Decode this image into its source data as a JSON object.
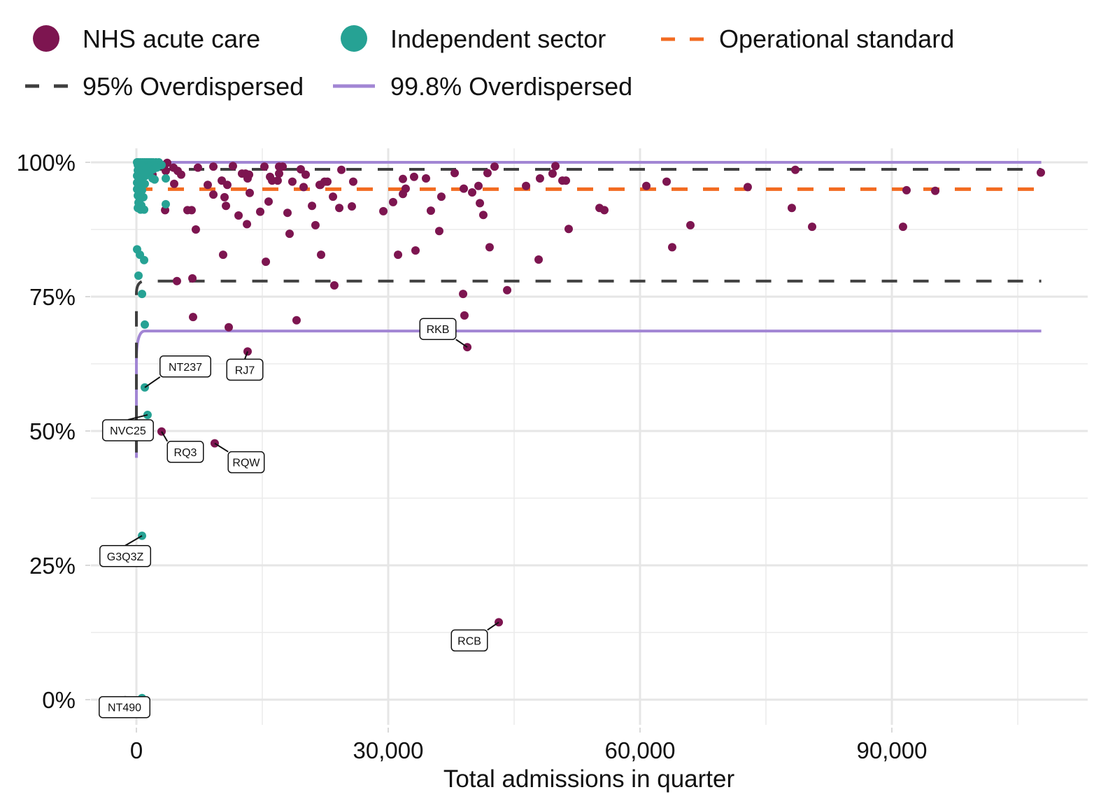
{
  "chart_data": {
    "type": "scatter",
    "title": "",
    "xlabel": "Total admissions in quarter",
    "ylabel": "",
    "xlim": [
      -5400,
      113000
    ],
    "ylim": [
      -0.05,
      1.03
    ],
    "x_ticks": [
      0,
      30000,
      60000,
      90000
    ],
    "x_tick_labels": [
      "0",
      "30,000",
      "60,000",
      "90,000"
    ],
    "y_ticks": [
      0,
      0.25,
      0.5,
      0.75,
      1.0
    ],
    "y_tick_labels": [
      "0%",
      "25%",
      "50%",
      "75%",
      "100%"
    ],
    "grid": true,
    "legend": {
      "position": "top",
      "entries": [
        {
          "label": "NHS acute care",
          "type": "point",
          "color": "#7d1550"
        },
        {
          "label": "Independent sector",
          "type": "point",
          "color": "#26a294"
        },
        {
          "label": "Operational standard",
          "type": "dashed-line",
          "color": "#f26b21"
        },
        {
          "label": "95% Overdispersed",
          "type": "dashed-line",
          "color": "#3f3f3f"
        },
        {
          "label": "99.8% Overdispersed",
          "type": "line",
          "color": "#a286d4"
        }
      ]
    },
    "reference_lines": {
      "operational_standard": 0.95,
      "limit_95_upper": 0.987,
      "limit_95_lower": 0.779,
      "limit_998_upper": 1.0,
      "limit_998_lower": 0.686,
      "x_max": 107800
    },
    "series": [
      {
        "name": "NHS acute care",
        "color": "#7d1550",
        "points": [
          [
            500,
            0.969
          ],
          [
            670,
            0.979
          ],
          [
            1920,
            0.977
          ],
          [
            1250,
            0.992
          ],
          [
            3330,
            0.995
          ],
          [
            3670,
            0.999
          ],
          [
            3500,
            0.984
          ],
          [
            4420,
            0.99
          ],
          [
            4920,
            0.984
          ],
          [
            5330,
            0.977
          ],
          [
            3420,
            0.911
          ],
          [
            4500,
            0.96
          ],
          [
            4830,
            0.779
          ],
          [
            6080,
            0.911
          ],
          [
            6580,
            0.911
          ],
          [
            6670,
            0.784
          ],
          [
            6750,
            0.712
          ],
          [
            7080,
            0.875
          ],
          [
            7330,
            0.99
          ],
          [
            8500,
            0.958
          ],
          [
            9170,
            0.992
          ],
          [
            9170,
            0.94
          ],
          [
            10170,
            0.966
          ],
          [
            10330,
            0.828
          ],
          [
            10500,
            0.935
          ],
          [
            10670,
            0.919
          ],
          [
            10830,
            0.958
          ],
          [
            11000,
            0.693
          ],
          [
            11500,
            0.993
          ],
          [
            12170,
            0.901
          ],
          [
            12580,
            0.979
          ],
          [
            13000,
            0.979
          ],
          [
            13170,
            0.885
          ],
          [
            13250,
            0.97
          ],
          [
            13420,
            0.977
          ],
          [
            13500,
            0.943
          ],
          [
            15420,
            0.815
          ],
          [
            15750,
            0.927
          ],
          [
            14750,
            0.908
          ],
          [
            15250,
            0.992
          ],
          [
            15920,
            0.973
          ],
          [
            16170,
            0.966
          ],
          [
            16830,
            0.966
          ],
          [
            17000,
            0.979
          ],
          [
            17000,
            0.992
          ],
          [
            17420,
            0.992
          ],
          [
            18000,
            0.906
          ],
          [
            18250,
            0.867
          ],
          [
            18580,
            0.964
          ],
          [
            19080,
            0.706
          ],
          [
            19580,
            0.987
          ],
          [
            19920,
            0.954
          ],
          [
            20170,
            0.977
          ],
          [
            20920,
            0.919
          ],
          [
            21330,
            0.883
          ],
          [
            21830,
            0.958
          ],
          [
            21920,
            0.958
          ],
          [
            22000,
            0.828
          ],
          [
            22420,
            0.964
          ],
          [
            22750,
            0.964
          ],
          [
            23420,
            0.936
          ],
          [
            23580,
            0.771
          ],
          [
            24170,
            0.915
          ],
          [
            24420,
            0.986
          ],
          [
            25670,
            0.918
          ],
          [
            25830,
            0.964
          ],
          [
            29420,
            0.909
          ],
          [
            30580,
            0.926
          ],
          [
            31170,
            0.828
          ],
          [
            31750,
            0.969
          ],
          [
            31750,
            0.941
          ],
          [
            32080,
            0.951
          ],
          [
            33080,
            0.973
          ],
          [
            33250,
            0.836
          ],
          [
            34500,
            0.97
          ],
          [
            35080,
            0.91
          ],
          [
            36080,
            0.872
          ],
          [
            36330,
            0.936
          ],
          [
            37920,
            0.98
          ],
          [
            38920,
            0.755
          ],
          [
            39000,
            0.951
          ],
          [
            39080,
            0.715
          ],
          [
            39420,
            0.656
          ],
          [
            40000,
            0.944
          ],
          [
            40920,
            0.924
          ],
          [
            41330,
            0.902
          ],
          [
            41830,
            0.98
          ],
          [
            42080,
            0.842
          ],
          [
            42670,
            0.992
          ],
          [
            40750,
            0.956
          ],
          [
            44170,
            0.762
          ],
          [
            46420,
            0.956
          ],
          [
            47920,
            0.819
          ],
          [
            48080,
            0.97
          ],
          [
            49580,
            0.979
          ],
          [
            49920,
            0.993
          ],
          [
            50750,
            0.966
          ],
          [
            51170,
            0.966
          ],
          [
            51500,
            0.876
          ],
          [
            55170,
            0.915
          ],
          [
            55750,
            0.911
          ],
          [
            60750,
            0.956
          ],
          [
            63170,
            0.964
          ],
          [
            63830,
            0.842
          ],
          [
            66000,
            0.883
          ],
          [
            72830,
            0.954
          ],
          [
            78080,
            0.915
          ],
          [
            78500,
            0.986
          ],
          [
            80500,
            0.88
          ],
          [
            91330,
            0.88
          ],
          [
            91750,
            0.948
          ],
          [
            95170,
            0.947
          ],
          [
            107750,
            0.981
          ],
          [
            43170,
            0.144
          ],
          [
            3000,
            0.499
          ],
          [
            9330,
            0.477
          ],
          [
            13250,
            0.648
          ]
        ]
      },
      {
        "name": "Independent sector",
        "color": "#26a294",
        "points": [
          [
            80,
            1.0
          ],
          [
            250,
            1.0
          ],
          [
            500,
            1.0
          ],
          [
            750,
            1.0
          ],
          [
            1000,
            1.0
          ],
          [
            1250,
            1.0
          ],
          [
            1500,
            1.0
          ],
          [
            1750,
            1.0
          ],
          [
            2000,
            1.0
          ],
          [
            2330,
            1.0
          ],
          [
            2670,
            1.0
          ],
          [
            3000,
            0.995
          ],
          [
            170,
            0.995
          ],
          [
            420,
            0.99
          ],
          [
            830,
            0.992
          ],
          [
            1170,
            0.99
          ],
          [
            1580,
            0.992
          ],
          [
            2000,
            0.987
          ],
          [
            2420,
            0.99
          ],
          [
            170,
            0.985
          ],
          [
            420,
            0.98
          ],
          [
            1000,
            0.98
          ],
          [
            1580,
            0.982
          ],
          [
            80,
            0.975
          ],
          [
            330,
            0.97
          ],
          [
            670,
            0.972
          ],
          [
            1080,
            0.975
          ],
          [
            1920,
            0.97
          ],
          [
            2170,
            0.968
          ],
          [
            80,
            0.962
          ],
          [
            250,
            0.958
          ],
          [
            580,
            0.956
          ],
          [
            1000,
            0.96
          ],
          [
            80,
            0.95
          ],
          [
            330,
            0.945
          ],
          [
            670,
            0.948
          ],
          [
            170,
            0.938
          ],
          [
            420,
            0.932
          ],
          [
            830,
            0.935
          ],
          [
            250,
            0.925
          ],
          [
            580,
            0.92
          ],
          [
            170,
            0.915
          ],
          [
            500,
            0.912
          ],
          [
            920,
            0.912
          ],
          [
            3500,
            0.922
          ],
          [
            3500,
            0.97
          ],
          [
            80,
            0.838
          ],
          [
            420,
            0.828
          ],
          [
            920,
            0.818
          ],
          [
            250,
            0.789
          ],
          [
            670,
            0.755
          ],
          [
            1000,
            0.698
          ],
          [
            1000,
            0.581
          ],
          [
            1330,
            0.53
          ],
          [
            670,
            0.305
          ],
          [
            670,
            0.003
          ]
        ]
      }
    ],
    "annotations": [
      {
        "label": "NT237",
        "series": "Independent sector",
        "x": 1000,
        "y": 0.581
      },
      {
        "label": "NVC25",
        "series": "Independent sector",
        "x": 1330,
        "y": 0.53
      },
      {
        "label": "RJ7",
        "series": "NHS acute care",
        "x": 13250,
        "y": 0.648
      },
      {
        "label": "RKB",
        "series": "NHS acute care",
        "x": 39420,
        "y": 0.656
      },
      {
        "label": "RQ3",
        "series": "NHS acute care",
        "x": 3000,
        "y": 0.499
      },
      {
        "label": "RQW",
        "series": "NHS acute care",
        "x": 9330,
        "y": 0.477
      },
      {
        "label": "G3Q3Z",
        "series": "Independent sector",
        "x": 670,
        "y": 0.305
      },
      {
        "label": "RCB",
        "series": "NHS acute care",
        "x": 43170,
        "y": 0.144
      },
      {
        "label": "NT490",
        "series": "Independent sector",
        "x": 670,
        "y": 0.003
      }
    ]
  }
}
